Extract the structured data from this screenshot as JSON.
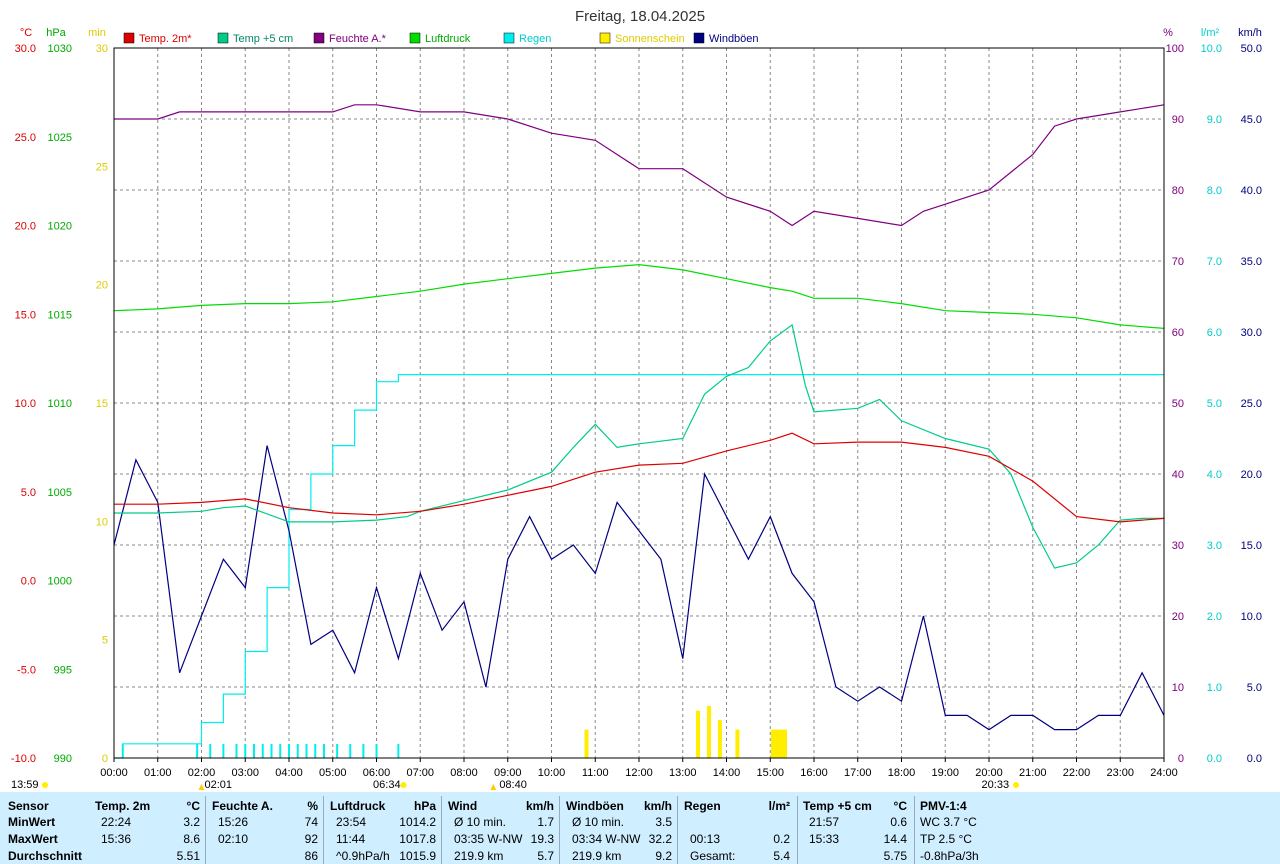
{
  "title": "Freitag, 18.04.2025",
  "legend": [
    {
      "label": "Temp. 2m*",
      "color": "#dd0000",
      "text_color": "#dd0000"
    },
    {
      "label": "Temp +5 cm",
      "color": "#00cc88",
      "text_color": "#008866"
    },
    {
      "label": "Feuchte A.*",
      "color": "#800080",
      "text_color": "#800080"
    },
    {
      "label": "Luftdruck",
      "color": "#00dd00",
      "text_color": "#00aa00"
    },
    {
      "label": "Regen",
      "color": "#00eeee",
      "text_color": "#00cccc"
    },
    {
      "label": "Sonnenschein",
      "color": "#ffee00",
      "text_color": "#ddcc00"
    },
    {
      "label": "Windböen",
      "color": "#000080",
      "text_color": "#000080"
    }
  ],
  "axes": {
    "temp_unit": "°C",
    "press_unit": "hPa",
    "sun_unit": "min",
    "hum_unit": "%",
    "rain_unit": "l/m²",
    "wind_unit": "km/h",
    "temp_ticks": [
      "30.0",
      "25.0",
      "20.0",
      "15.0",
      "10.0",
      "5.0",
      "0.0",
      "-5.0",
      "-10.0"
    ],
    "press_ticks": [
      "1030",
      "1025",
      "1020",
      "1015",
      "1010",
      "1005",
      "1000",
      "995",
      "990"
    ],
    "sun_ticks": [
      "30",
      "25",
      "20",
      "15",
      "10",
      "5",
      "0"
    ],
    "hum_ticks": [
      "100",
      "90",
      "80",
      "70",
      "60",
      "50",
      "40",
      "30",
      "20",
      "10",
      "0"
    ],
    "rain_ticks": [
      "10.0",
      "9.0",
      "8.0",
      "7.0",
      "6.0",
      "5.0",
      "4.0",
      "3.0",
      "2.0",
      "1.0",
      "0.0"
    ],
    "wind_ticks": [
      "50.0",
      "45.0",
      "40.0",
      "35.0",
      "30.0",
      "25.0",
      "20.0",
      "15.0",
      "10.0",
      "5.0",
      "0.0"
    ],
    "time_ticks": [
      "00:00",
      "01:00",
      "02:00",
      "03:00",
      "04:00",
      "05:00",
      "06:00",
      "07:00",
      "08:00",
      "09:00",
      "10:00",
      "11:00",
      "12:00",
      "13:00",
      "14:00",
      "15:00",
      "16:00",
      "17:00",
      "18:00",
      "19:00",
      "20:00",
      "21:00",
      "22:00",
      "23:00",
      "24:00"
    ]
  },
  "markers": {
    "temp_min": "02:01",
    "dawn": "06:34",
    "temp_max": "08:40",
    "dusk": "20:33",
    "sunrise_label": "13:59"
  },
  "chart_data": {
    "type": "line",
    "title": "Freitag, 18.04.2025",
    "x_unit": "hour of day",
    "xlim": [
      0,
      24
    ],
    "series": [
      {
        "name": "Temp. 2m*",
        "axis": "°C",
        "ylim": [
          -10,
          30
        ],
        "x": [
          0,
          1,
          2,
          3,
          4,
          5,
          6,
          7,
          8,
          9,
          10,
          11,
          12,
          13,
          14,
          15,
          15.5,
          16,
          17,
          18,
          19,
          20,
          21,
          22,
          23,
          24
        ],
        "y": [
          4.3,
          4.3,
          4.4,
          4.6,
          4.1,
          3.8,
          3.7,
          3.9,
          4.3,
          4.8,
          5.3,
          6.1,
          6.5,
          6.6,
          7.3,
          7.9,
          8.3,
          7.7,
          7.8,
          7.8,
          7.5,
          7.0,
          5.6,
          3.6,
          3.3,
          3.5
        ]
      },
      {
        "name": "Temp +5 cm",
        "axis": "°C",
        "ylim": [
          -10,
          30
        ],
        "x": [
          0,
          1,
          2,
          2.5,
          3,
          4,
          5,
          6,
          6.7,
          7,
          8,
          9,
          10,
          10.5,
          11,
          11.5,
          12,
          13,
          13.5,
          14,
          14.5,
          15,
          15.5,
          15.8,
          16,
          17,
          17.5,
          18,
          19,
          20,
          20.5,
          21,
          21.5,
          22,
          22.5,
          23,
          23.5,
          24
        ],
        "y": [
          3.8,
          3.8,
          3.9,
          4.1,
          4.2,
          3.3,
          3.3,
          3.4,
          3.6,
          3.9,
          4.5,
          5.1,
          6.1,
          7.5,
          8.8,
          7.5,
          7.7,
          8.0,
          10.5,
          11.5,
          12.0,
          13.5,
          14.4,
          11.0,
          9.5,
          9.7,
          10.2,
          9.0,
          8.0,
          7.4,
          6.0,
          3.0,
          0.7,
          1.0,
          2.0,
          3.4,
          3.5,
          3.5
        ]
      },
      {
        "name": "Feuchte A.*",
        "axis": "%",
        "ylim": [
          0,
          100
        ],
        "x": [
          0,
          1,
          1.5,
          2,
          3,
          4,
          5,
          5.5,
          6,
          7,
          8,
          9,
          10,
          11,
          11.5,
          12,
          13,
          14,
          15,
          15.5,
          16,
          17,
          18,
          18.5,
          19,
          20,
          21,
          21.5,
          22,
          23,
          24
        ],
        "y": [
          90,
          90,
          91,
          91,
          91,
          91,
          91,
          92,
          92,
          91,
          91,
          90,
          88,
          87,
          85,
          83,
          83,
          79,
          77,
          75,
          77,
          76,
          75,
          77,
          78,
          80,
          85,
          89,
          90,
          91,
          92
        ]
      },
      {
        "name": "Luftdruck",
        "axis": "hPa",
        "ylim": [
          990,
          1030
        ],
        "x": [
          0,
          1,
          2,
          3,
          4,
          5,
          6,
          7,
          8,
          9,
          10,
          11,
          12,
          13,
          14,
          15,
          15.5,
          16,
          17,
          18,
          19,
          20,
          21,
          22,
          23,
          24
        ],
        "y": [
          1015.2,
          1015.3,
          1015.5,
          1015.6,
          1015.6,
          1015.7,
          1016.0,
          1016.3,
          1016.7,
          1017.0,
          1017.3,
          1017.6,
          1017.8,
          1017.5,
          1017.0,
          1016.5,
          1016.3,
          1015.9,
          1015.9,
          1015.6,
          1015.2,
          1015.1,
          1015.0,
          1014.8,
          1014.4,
          1014.2
        ]
      },
      {
        "name": "Regen",
        "axis": "l/m²",
        "ylim": [
          0,
          10
        ],
        "x": [
          0,
          0.2,
          1,
          1.5,
          2,
          2.5,
          3,
          3.5,
          4,
          4.5,
          5,
          5.5,
          6,
          6.5,
          7,
          8,
          9,
          10,
          11,
          12,
          13,
          13.5,
          14,
          15,
          16,
          17,
          18,
          19,
          20,
          21,
          22,
          23,
          24
        ],
        "y": [
          0,
          0.2,
          0.2,
          0.2,
          0.5,
          0.9,
          1.5,
          2.4,
          3.5,
          4.0,
          4.4,
          4.9,
          5.3,
          5.4,
          5.4,
          5.4,
          5.4,
          5.4,
          5.4,
          5.4,
          5.4,
          5.4,
          5.4,
          5.4,
          5.4,
          5.4,
          5.4,
          5.4,
          5.4,
          5.4,
          5.4,
          5.4,
          5.4
        ]
      },
      {
        "name": "Windböen",
        "axis": "km/h",
        "ylim": [
          0,
          50
        ],
        "x": [
          0,
          0.5,
          1,
          1.5,
          2,
          2.5,
          3,
          3.5,
          4,
          4.5,
          5,
          5.5,
          6,
          6.5,
          7,
          7.5,
          8,
          8.5,
          9,
          9.5,
          10,
          10.5,
          11,
          11.5,
          12,
          12.5,
          13,
          13.5,
          14,
          14.5,
          15,
          15.5,
          16,
          16.5,
          17,
          17.5,
          18,
          18.5,
          19,
          19.5,
          20,
          20.5,
          21,
          21.5,
          22,
          22.5,
          23,
          23.5,
          24
        ],
        "y": [
          15,
          21,
          18,
          6,
          10,
          14,
          12,
          22,
          16,
          8,
          9,
          6,
          12,
          7,
          13,
          9,
          11,
          5,
          14,
          17,
          14,
          15,
          13,
          18,
          16,
          14,
          7,
          20,
          17,
          14,
          17,
          13,
          11,
          5,
          4,
          5,
          4,
          10,
          3,
          3,
          2,
          3,
          3,
          2,
          2,
          3,
          3,
          6,
          3
        ]
      }
    ],
    "sunshine": {
      "name": "Sonnenschein",
      "axis": "min",
      "ylim": [
        0,
        30
      ],
      "x": [
        10.8,
        13.35,
        13.6,
        13.85,
        14.25,
        15.2
      ],
      "y": [
        1.2,
        2.0,
        2.2,
        1.6,
        1.2,
        1.2
      ]
    }
  },
  "table": {
    "headers": [
      {
        "label": "Sensor",
        "unit": ""
      },
      {
        "label": "Temp. 2m",
        "unit": "°C"
      },
      {
        "label": "Feuchte A.",
        "unit": "%"
      },
      {
        "label": "Luftdruck",
        "unit": "hPa"
      },
      {
        "label": "Wind",
        "unit": "km/h"
      },
      {
        "label": "Windböen",
        "unit": "km/h"
      },
      {
        "label": "Regen",
        "unit": "l/m²"
      },
      {
        "label": "Temp +5 cm",
        "unit": "°C"
      },
      {
        "label": "PMV-1:4",
        "unit": ""
      }
    ],
    "rows": [
      {
        "label": "MinWert",
        "cells": [
          [
            "22:24",
            "3.2"
          ],
          [
            "15:26",
            "74"
          ],
          [
            "23:54",
            "1014.2"
          ],
          [
            "Ø 10 min.",
            "1.7"
          ],
          [
            "Ø 10 min.",
            "3.5"
          ],
          [
            "",
            ""
          ],
          [
            "21:57",
            "0.6"
          ],
          [
            "WC 3.7 °C",
            ""
          ]
        ]
      },
      {
        "label": "MaxWert",
        "cells": [
          [
            "15:36",
            "8.6"
          ],
          [
            "02:10",
            "92"
          ],
          [
            "11:44",
            "1017.8"
          ],
          [
            "03:35   W-NW",
            "19.3"
          ],
          [
            "03:34   W-NW",
            "32.2"
          ],
          [
            "00:13",
            "0.2"
          ],
          [
            "15:33",
            "14.4"
          ],
          [
            "TP 2.5 °C",
            ""
          ]
        ]
      },
      {
        "label": "Durchschnitt",
        "cells": [
          [
            "",
            "5.51"
          ],
          [
            "",
            "86"
          ],
          [
            "^0.9hPa/h",
            "1015.9"
          ],
          [
            "219.9 km",
            "5.7"
          ],
          [
            "219.9 km",
            "9.2"
          ],
          [
            "Gesamt:",
            "5.4"
          ],
          [
            "",
            "5.75"
          ],
          [
            "-0.8hPa/3h",
            ""
          ]
        ]
      }
    ]
  }
}
